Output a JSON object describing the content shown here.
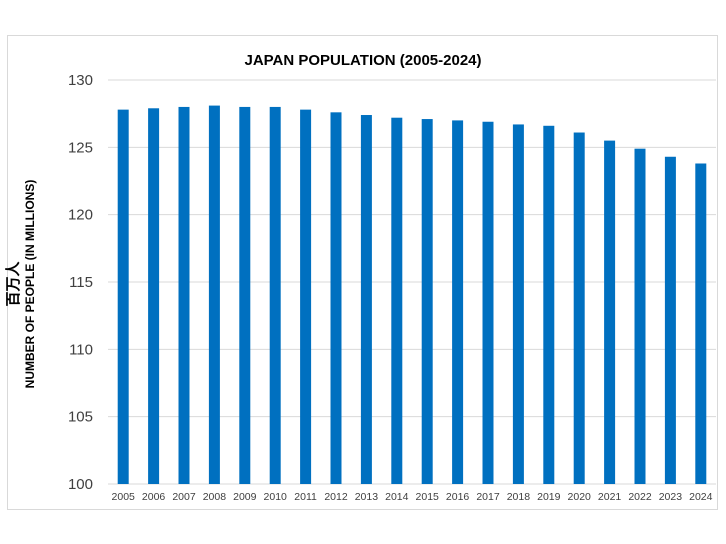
{
  "chart_data": {
    "type": "bar",
    "title": "JAPAN POPULATION (2005-2024)",
    "ylabel_line1": "百万人",
    "ylabel_line2": "NUMBER OF PEOPLE (IN MILLIONS)",
    "xlabel": "",
    "categories": [
      "2005",
      "2006",
      "2007",
      "2008",
      "2009",
      "2010",
      "2011",
      "2012",
      "2013",
      "2014",
      "2015",
      "2016",
      "2017",
      "2018",
      "2019",
      "2020",
      "2021",
      "2022",
      "2023",
      "2024"
    ],
    "values": [
      127.8,
      127.9,
      128.0,
      128.1,
      128.0,
      128.0,
      127.8,
      127.6,
      127.4,
      127.2,
      127.1,
      127.0,
      126.9,
      126.7,
      126.6,
      126.1,
      125.5,
      124.9,
      124.3,
      123.8
    ],
    "ylim": [
      100,
      130
    ],
    "yticks": [
      100,
      105,
      110,
      115,
      120,
      125,
      130
    ],
    "grid": true,
    "legend": "none",
    "bar_color": "#0070c0",
    "grid_color": "#d9d9d9"
  }
}
